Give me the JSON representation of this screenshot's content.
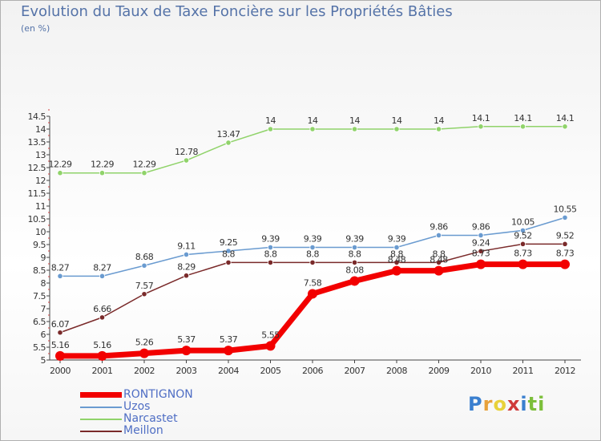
{
  "title": "Evolution du Taux de Taxe Foncière sur les Propriétés Bâties",
  "subtitle": "(en %)",
  "logo": {
    "letters": [
      "P",
      "r",
      "o",
      "x",
      "i",
      "t",
      "i"
    ],
    "colors": [
      "#3a7fcf",
      "#e8a13a",
      "#e8d23a",
      "#cf3a3a",
      "#3a7fcf",
      "#7cbf3a",
      "#7cbf3a"
    ]
  },
  "chart_data": {
    "type": "line",
    "x": [
      "2000",
      "2001",
      "2002",
      "2003",
      "2004",
      "2005",
      "2006",
      "2007",
      "2008",
      "2009",
      "2010",
      "2011",
      "2012"
    ],
    "ylim": [
      5,
      14.5
    ],
    "yticks": [
      "5",
      "5.5",
      "6",
      "6.5",
      "7",
      "7.5",
      "8",
      "8.5",
      "9",
      "9.5",
      "10",
      "10.5",
      "11",
      "11.5",
      "12",
      "12.5",
      "13",
      "13.5",
      "14",
      "14.5"
    ],
    "grid": false,
    "legend_position": "bottom-left",
    "series": [
      {
        "name": "RONTIGNON",
        "color": "#f20000",
        "values": [
          5.16,
          5.16,
          5.26,
          5.37,
          5.37,
          5.55,
          7.58,
          8.08,
          8.48,
          8.48,
          8.73,
          8.73,
          8.73
        ],
        "labels": [
          "5.16",
          "5.16",
          "5.26",
          "5.37",
          "5.37",
          "5.55",
          "7.58",
          "8.08",
          "8.48",
          "8.48",
          "8.73",
          "8.73",
          "8.73"
        ],
        "thick": true
      },
      {
        "name": "Uzos",
        "color": "#6a9bd0",
        "values": [
          8.27,
          8.27,
          8.68,
          9.11,
          9.25,
          9.39,
          9.39,
          9.39,
          9.39,
          9.86,
          9.86,
          10.05,
          10.55
        ],
        "labels": [
          "8.27",
          "8.27",
          "8.68",
          "9.11",
          "9.25",
          "9.39",
          "9.39",
          "9.39",
          "9.39",
          "9.86",
          "9.86",
          "10.05",
          "10.55"
        ],
        "thick": false
      },
      {
        "name": "Narcastet",
        "color": "#90d36a",
        "values": [
          12.29,
          12.29,
          12.29,
          12.78,
          13.47,
          14,
          14,
          14,
          14,
          14,
          14.1,
          14.1,
          14.1
        ],
        "labels": [
          "12.29",
          "12.29",
          "12.29",
          "12.78",
          "13.47",
          "14",
          "14",
          "14",
          "14",
          "14",
          "14.1",
          "14.1",
          "14.1"
        ],
        "thick": false
      },
      {
        "name": "Meillon",
        "color": "#7a2a2a",
        "values": [
          6.07,
          6.66,
          7.57,
          8.29,
          8.8,
          8.8,
          8.8,
          8.8,
          8.8,
          8.8,
          9.24,
          9.52,
          9.52
        ],
        "labels": [
          "6.07",
          "6.66",
          "7.57",
          "8.29",
          "8.8",
          "8.8",
          "8.8",
          "8.8",
          "8.8",
          "8.8",
          "9.24",
          "9.52",
          "9.52"
        ],
        "thick": false
      }
    ]
  }
}
